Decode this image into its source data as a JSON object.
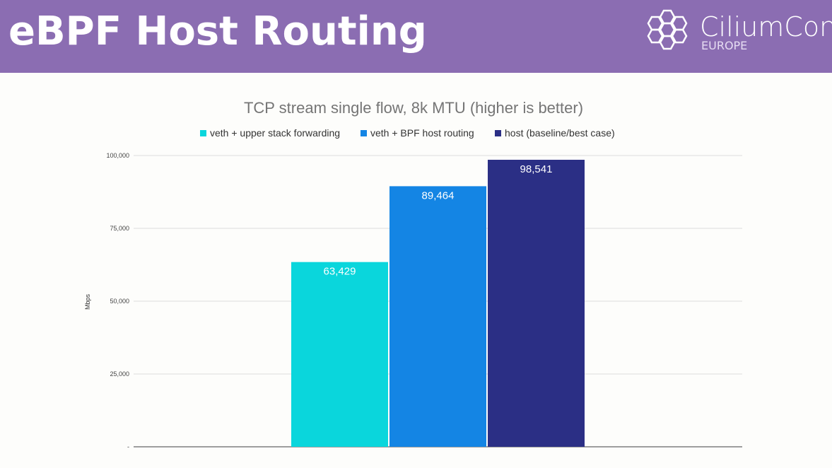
{
  "header": {
    "title": "eBPF Host Routing",
    "logo_name": "CiliumCon",
    "logo_sub": "EUROPE"
  },
  "chart_data": {
    "type": "bar",
    "title": "TCP stream single flow, 8k MTU (higher is better)",
    "ylabel": "Mbps",
    "xlabel": "",
    "ylim": [
      0,
      100000
    ],
    "yticks": [
      0,
      25000,
      50000,
      75000,
      100000
    ],
    "ytick_labels": [
      "-",
      "25,000",
      "50,000",
      "75,000",
      "100,000"
    ],
    "legend_position": "top",
    "grid": true,
    "series": [
      {
        "name": "veth + upper stack forwarding",
        "values": [
          63429
        ],
        "label": "63,429",
        "color": "#0ad6dc"
      },
      {
        "name": "veth + BPF host routing",
        "values": [
          89464
        ],
        "label": "89,464",
        "color": "#1485e4"
      },
      {
        "name": "host (baseline/best case)",
        "values": [
          98541
        ],
        "label": "98,541",
        "color": "#2b2f85"
      }
    ]
  }
}
